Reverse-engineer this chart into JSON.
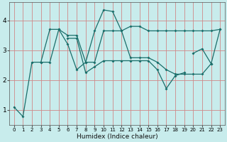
{
  "xlabel": "Humidex (Indice chaleur)",
  "bg_color": "#c8ecec",
  "grid_color": "#d08888",
  "line_color": "#1a6e6a",
  "xlim": [
    -0.5,
    23.5
  ],
  "ylim": [
    0.5,
    4.6
  ],
  "yticks": [
    1,
    2,
    3,
    4
  ],
  "xticks": [
    0,
    1,
    2,
    3,
    4,
    5,
    6,
    7,
    8,
    9,
    10,
    11,
    12,
    13,
    14,
    15,
    16,
    17,
    18,
    19,
    20,
    21,
    22,
    23
  ],
  "curves": [
    {
      "x": [
        0,
        1,
        2,
        3,
        4,
        5,
        6,
        7,
        8,
        9,
        10,
        11,
        12,
        13,
        14,
        15,
        16,
        17,
        18,
        19,
        20,
        21,
        22,
        23
      ],
      "y": [
        1.1,
        0.78,
        2.6,
        2.6,
        3.7,
        3.7,
        3.2,
        2.35,
        2.6,
        3.65,
        4.35,
        4.3,
        3.65,
        3.8,
        3.8,
        3.65,
        3.65,
        3.65,
        3.65,
        3.65,
        3.65,
        3.65,
        3.65,
        3.7
      ]
    },
    {
      "x": [
        3,
        4,
        5,
        6,
        7,
        8,
        9,
        10,
        11,
        12,
        13,
        14,
        15,
        16,
        17,
        18,
        19,
        20,
        21,
        22
      ],
      "y": [
        2.6,
        2.6,
        3.7,
        3.5,
        3.5,
        2.6,
        2.6,
        3.65,
        3.65,
        3.65,
        2.75,
        2.75,
        2.75,
        2.6,
        2.35,
        2.2,
        2.2,
        2.2,
        2.2,
        2.55
      ]
    },
    {
      "x": [
        6,
        7,
        8,
        9,
        10,
        11,
        12,
        13,
        14,
        15,
        16,
        17,
        18,
        19
      ],
      "y": [
        3.4,
        3.4,
        2.25,
        2.45,
        2.65,
        2.65,
        2.65,
        2.65,
        2.65,
        2.65,
        2.35,
        1.72,
        2.15,
        2.25
      ]
    },
    {
      "x": [
        20,
        21,
        22,
        23
      ],
      "y": [
        2.9,
        3.05,
        2.55,
        3.7
      ]
    }
  ]
}
